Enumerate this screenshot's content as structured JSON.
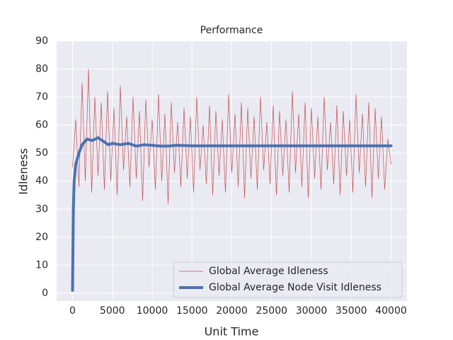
{
  "chart_data": {
    "type": "line",
    "title": "Performance",
    "xlabel": "Unit Time",
    "ylabel": "Idleness",
    "xlim": [
      -2000,
      42000
    ],
    "ylim": [
      -2.8,
      90
    ],
    "xticks": [
      0,
      5000,
      10000,
      15000,
      20000,
      25000,
      30000,
      35000,
      40000
    ],
    "yticks": [
      0,
      10,
      20,
      30,
      40,
      50,
      60,
      70,
      80,
      90
    ],
    "grid": true,
    "legend": "lower right",
    "series": [
      {
        "name": "Global Average Idleness",
        "color": "#c44e52",
        "linewidth": 0.7,
        "x": [
          0,
          400,
          800,
          1200,
          1600,
          2000,
          2400,
          2800,
          3200,
          3600,
          4000,
          4400,
          4800,
          5200,
          5600,
          6000,
          6400,
          6800,
          7200,
          7600,
          8000,
          8400,
          8800,
          9200,
          9600,
          10000,
          10400,
          10800,
          11200,
          11600,
          12000,
          12400,
          12800,
          13200,
          13600,
          14000,
          14400,
          14800,
          15200,
          15600,
          16000,
          16400,
          16800,
          17200,
          17600,
          18000,
          18400,
          18800,
          19200,
          19600,
          20000,
          20400,
          20800,
          21200,
          21600,
          22000,
          22400,
          22800,
          23200,
          23600,
          24000,
          24400,
          24800,
          25200,
          25600,
          26000,
          26400,
          26800,
          27200,
          27600,
          28000,
          28400,
          28800,
          29200,
          29600,
          30000,
          30400,
          30800,
          31200,
          31600,
          32000,
          32400,
          32800,
          33200,
          33600,
          34000,
          34400,
          34800,
          35200,
          35600,
          36000,
          36400,
          36800,
          37200,
          37600,
          38000,
          38400,
          38800,
          39200,
          39600,
          40000
        ],
        "values": [
          45,
          62,
          38,
          75,
          40,
          80,
          36,
          70,
          42,
          68,
          37,
          72,
          40,
          66,
          35,
          74,
          44,
          63,
          38,
          70,
          41,
          65,
          33,
          69,
          45,
          62,
          37,
          71,
          40,
          64,
          32,
          68,
          43,
          61,
          38,
          66,
          41,
          63,
          36,
          70,
          44,
          60,
          39,
          67,
          35,
          65,
          42,
          62,
          36,
          71,
          43,
          64,
          38,
          68,
          34,
          66,
          41,
          63,
          37,
          70,
          44,
          61,
          39,
          67,
          35,
          65,
          42,
          62,
          36,
          72,
          43,
          64,
          38,
          68,
          34,
          66,
          41,
          63,
          37,
          70,
          44,
          61,
          39,
          67,
          35,
          65,
          42,
          62,
          36,
          71,
          43,
          64,
          38,
          68,
          34,
          66,
          41,
          63,
          37,
          55,
          46
        ]
      },
      {
        "name": "Global Average Node Visit Idleness",
        "color": "#4c72b0",
        "linewidth": 4,
        "x": [
          0,
          100,
          200,
          400,
          800,
          1200,
          1800,
          2500,
          3200,
          4000,
          4500,
          5000,
          6000,
          7000,
          8000,
          9000,
          10000,
          11000,
          12000,
          13000,
          15000,
          20000,
          30000,
          40000
        ],
        "values": [
          1,
          30,
          40,
          46,
          50,
          53,
          55,
          54.5,
          55.5,
          54,
          53,
          53.5,
          53,
          53.5,
          52.5,
          53,
          52.8,
          52.5,
          52.5,
          52.8,
          52.6,
          52.6,
          52.6,
          52.6
        ]
      }
    ]
  }
}
